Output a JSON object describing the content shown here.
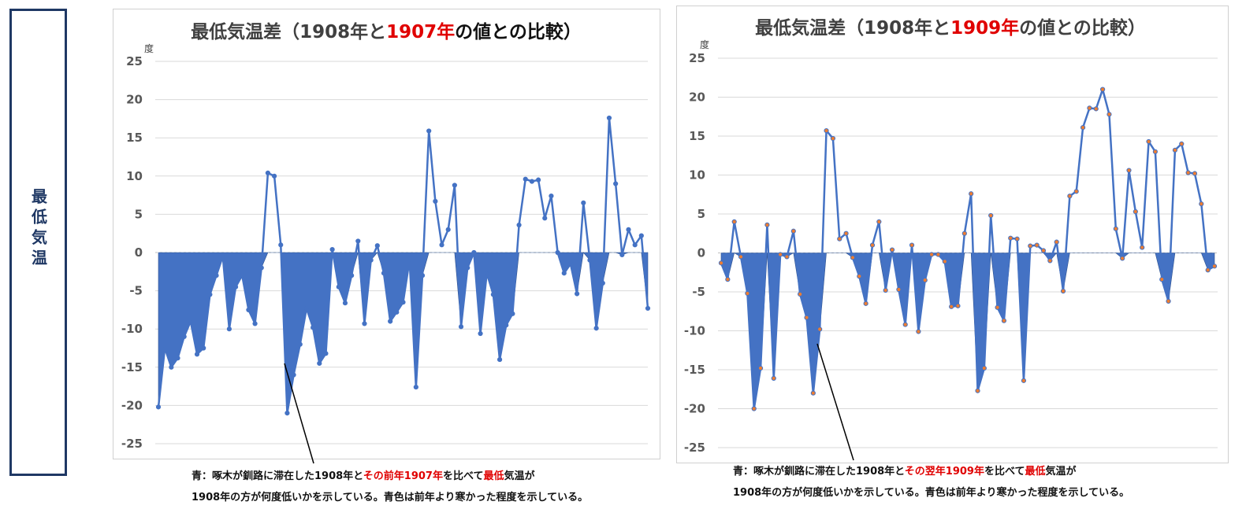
{
  "side_label": "最低気温",
  "chart_data": [
    {
      "type": "area",
      "title": {
        "pre": "最低気温差（1908年と",
        "highlight": "1907年",
        "post": "の値との比較）"
      },
      "ylabel": "度",
      "ylim": [
        -25,
        25
      ],
      "yticks": [
        "25",
        "20",
        "15",
        "10",
        "5",
        "0",
        "-5",
        "-10",
        "-15",
        "-20",
        "-25"
      ],
      "accent_color": "#4472c4",
      "values": [
        -20.2,
        -12.5,
        -15,
        -13.8,
        -11,
        -9,
        -13.3,
        -12.5,
        -5.5,
        -3,
        -0.5,
        -10,
        -4.5,
        -3,
        -7.5,
        -9.3,
        -2,
        10.4,
        10,
        1,
        -21,
        -16,
        -12,
        -7.3,
        -9.8,
        -14.5,
        -13.2,
        0.4,
        -4.5,
        -6.6,
        -3,
        1.5,
        -9.3,
        -1,
        0.9,
        -2.7,
        -9,
        -7.8,
        -6.5,
        -1,
        -17.6,
        -3,
        15.9,
        6.7,
        1,
        3,
        8.8,
        -9.7,
        -2,
        0,
        -10.6,
        -2.7,
        -5.5,
        -14,
        -9.5,
        -8,
        3.6,
        9.6,
        9.3,
        9.5,
        4.5,
        7.4,
        0,
        -2.7,
        -1.5,
        -5.4,
        6.5,
        -1,
        -9.9,
        -4,
        17.6,
        9,
        -0.3,
        3,
        1,
        2.2,
        -7.3
      ],
      "annotation": {
        "line1_pre": "青：啄木が釧路に滞在した1908年と",
        "line1_red1": "その前年1907年",
        "line1_mid": "を比べて",
        "line1_red2": "最低",
        "line1_post": "気温が",
        "line2": "1908年の方が何度低いかを示している。青色は前年より寒かった程度を示している。"
      }
    },
    {
      "type": "area",
      "title": {
        "pre": "最低気温差（1908年と",
        "highlight": "1909年",
        "post": "の値との比較）"
      },
      "ylabel": "度",
      "ylim": [
        -25,
        25
      ],
      "yticks": [
        "25",
        "20",
        "15",
        "10",
        "5",
        "0",
        "-5",
        "-10",
        "-15",
        "-20",
        "-25"
      ],
      "accent_color": "#4472c4",
      "values": [
        -1.3,
        -3.4,
        4,
        -0.5,
        -5.2,
        -20,
        -14.8,
        3.6,
        -16.1,
        -0.2,
        -0.5,
        2.8,
        -5.3,
        -8.3,
        -18,
        -9.8,
        15.7,
        14.7,
        1.8,
        2.5,
        -0.6,
        -3,
        -6.5,
        1,
        4,
        -4.8,
        0.4,
        -4.7,
        -9.2,
        1,
        -10.1,
        -3.5,
        -0.2,
        -0.2,
        -1.1,
        -6.9,
        -6.8,
        2.5,
        7.6,
        -17.7,
        -14.8,
        4.8,
        -7,
        -8.7,
        1.9,
        1.8,
        -16.4,
        0.9,
        1,
        0.3,
        -1,
        1.4,
        -4.9,
        7.3,
        7.9,
        16.1,
        18.6,
        18.5,
        21,
        17.8,
        3.1,
        -0.7,
        10.6,
        5.3,
        0.7,
        14.3,
        13,
        -3.4,
        -6.2,
        13.2,
        14,
        10.3,
        10.2,
        6.3,
        -2.2,
        -1.7
      ],
      "annotation": {
        "line1_pre": "青：啄木が釧路に滞在した1908年と",
        "line1_red1": "その翌年1909年",
        "line1_mid": "を比べて",
        "line1_red2": "最低",
        "line1_post": "気温が",
        "line2": "1908年の方が何度低いかを示している。青色は前年より寒かった程度を示している。"
      }
    }
  ]
}
